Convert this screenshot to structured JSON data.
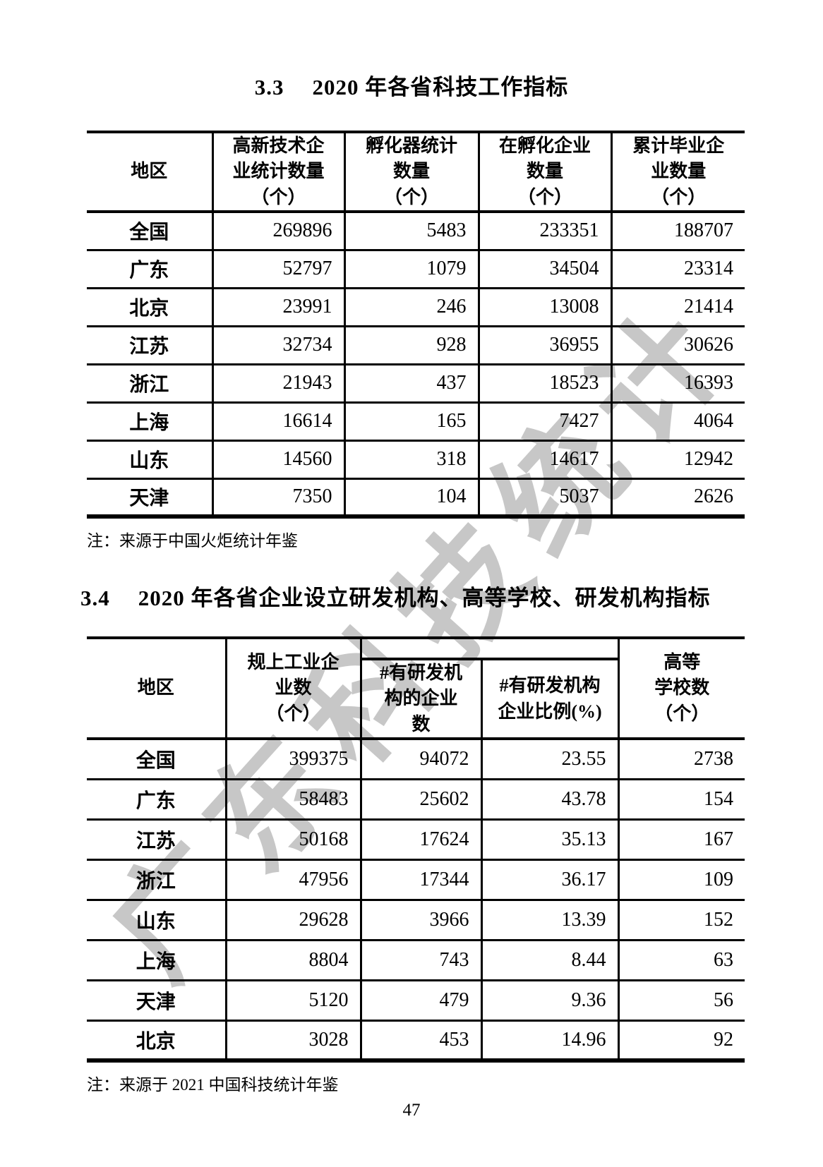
{
  "watermark": "广东科技统计",
  "page_number": "47",
  "section1": {
    "heading_number": "3.3",
    "heading_text": "2020 年各省科技工作指标",
    "note": "注：来源于中国火炬统计年鉴",
    "table": {
      "headers": [
        "地区",
        "高新技术企\n业统计数量\n（个）",
        "孵化器统计\n数量\n（个）",
        "在孵化企业\n数量\n（个）",
        "累计毕业企\n业数量\n（个）"
      ],
      "rows": [
        [
          "全国",
          "269896",
          "5483",
          "233351",
          "188707"
        ],
        [
          "广东",
          "52797",
          "1079",
          "34504",
          "23314"
        ],
        [
          "北京",
          "23991",
          "246",
          "13008",
          "21414"
        ],
        [
          "江苏",
          "32734",
          "928",
          "36955",
          "30626"
        ],
        [
          "浙江",
          "21943",
          "437",
          "18523",
          "16393"
        ],
        [
          "上海",
          "16614",
          "165",
          "7427",
          "4064"
        ],
        [
          "山东",
          "14560",
          "318",
          "14617",
          "12942"
        ],
        [
          "天津",
          "7350",
          "104",
          "5037",
          "2626"
        ]
      ]
    }
  },
  "section2": {
    "heading_number": "3.4",
    "heading_text": "2020 年各省企业设立研发机构、高等学校、研发机构指标",
    "note": "注：来源于 2021 中国科技统计年鉴",
    "table": {
      "headers": [
        "地区",
        "规上工业企\n业数\n（个）",
        "#有研发机\n构的企业\n数",
        "#有研发机构\n企业比例(%)",
        "高等\n学校数\n（个）"
      ],
      "rows": [
        [
          "全国",
          "399375",
          "94072",
          "23.55",
          "2738"
        ],
        [
          "广东",
          "58483",
          "25602",
          "43.78",
          "154"
        ],
        [
          "江苏",
          "50168",
          "17624",
          "35.13",
          "167"
        ],
        [
          "浙江",
          "47956",
          "17344",
          "36.17",
          "109"
        ],
        [
          "山东",
          "29628",
          "3966",
          "13.39",
          "152"
        ],
        [
          "上海",
          "8804",
          "743",
          "8.44",
          "63"
        ],
        [
          "天津",
          "5120",
          "479",
          "9.36",
          "56"
        ],
        [
          "北京",
          "3028",
          "453",
          "14.96",
          "92"
        ]
      ]
    }
  }
}
